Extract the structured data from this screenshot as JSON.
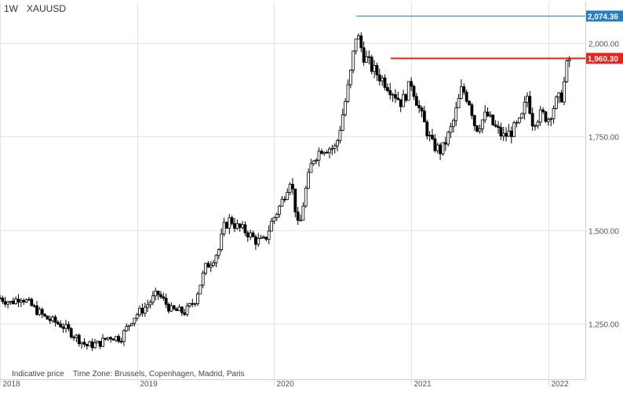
{
  "header": {
    "interval": "1W",
    "symbol": "XAUUSD"
  },
  "footer": {
    "note": "Indicative price",
    "timezone": "Time Zone: Brussels, Copenhagen, Madrid, Paris"
  },
  "colors": {
    "up": "#ffffff",
    "down": "#000000",
    "wick": "#000000",
    "grid": "#e3e3e3",
    "high_line": "#2b7bbf",
    "current_line": "#e8231b"
  },
  "chart_data": {
    "type": "candlestick",
    "title": "",
    "xlabel": "",
    "ylabel": "",
    "ylim": [
      1100,
      2110
    ],
    "y_ticks": [
      1250,
      1500,
      1750,
      2000
    ],
    "y_tick_labels": [
      "1,250.00",
      "1,500.00",
      "1,750.00",
      "2,000.00"
    ],
    "x_ticks": [
      2018,
      2019,
      2020,
      2021,
      2022
    ],
    "x_tick_labels": [
      "2018",
      "2019",
      "2020",
      "2021",
      "2022"
    ],
    "xlim": [
      2018.0,
      2022.27
    ],
    "grid": true,
    "anchors": [
      [
        2018.0,
        1318
      ],
      [
        2018.08,
        1305
      ],
      [
        2018.15,
        1322
      ],
      [
        2018.25,
        1290
      ],
      [
        2018.33,
        1265
      ],
      [
        2018.45,
        1245
      ],
      [
        2018.55,
        1215
      ],
      [
        2018.63,
        1190
      ],
      [
        2018.72,
        1195
      ],
      [
        2018.8,
        1215
      ],
      [
        2018.88,
        1210
      ],
      [
        2018.97,
        1265
      ],
      [
        2019.05,
        1290
      ],
      [
        2019.15,
        1330
      ],
      [
        2019.25,
        1285
      ],
      [
        2019.35,
        1280
      ],
      [
        2019.42,
        1310
      ],
      [
        2019.5,
        1400
      ],
      [
        2019.55,
        1420
      ],
      [
        2019.6,
        1450
      ],
      [
        2019.63,
        1505
      ],
      [
        2019.68,
        1530
      ],
      [
        2019.72,
        1510
      ],
      [
        2019.8,
        1495
      ],
      [
        2019.87,
        1470
      ],
      [
        2019.93,
        1470
      ],
      [
        2019.98,
        1520
      ],
      [
        2020.05,
        1570
      ],
      [
        2020.12,
        1640
      ],
      [
        2020.18,
        1495
      ],
      [
        2020.22,
        1590
      ],
      [
        2020.28,
        1690
      ],
      [
        2020.35,
        1720
      ],
      [
        2020.45,
        1720
      ],
      [
        2020.5,
        1810
      ],
      [
        2020.55,
        1900
      ],
      [
        2020.6,
        2030
      ],
      [
        2020.65,
        1970
      ],
      [
        2020.72,
        1930
      ],
      [
        2020.8,
        1900
      ],
      [
        2020.87,
        1870
      ],
      [
        2020.93,
        1840
      ],
      [
        2021.0,
        1895
      ],
      [
        2021.07,
        1810
      ],
      [
        2021.15,
        1730
      ],
      [
        2021.22,
        1710
      ],
      [
        2021.3,
        1780
      ],
      [
        2021.37,
        1880
      ],
      [
        2021.43,
        1840
      ],
      [
        2021.47,
        1770
      ],
      [
        2021.55,
        1810
      ],
      [
        2021.6,
        1780
      ],
      [
        2021.67,
        1750
      ],
      [
        2021.72,
        1760
      ],
      [
        2021.8,
        1790
      ],
      [
        2021.85,
        1865
      ],
      [
        2021.88,
        1790
      ],
      [
        2021.95,
        1810
      ],
      [
        2022.0,
        1800
      ],
      [
        2022.05,
        1840
      ],
      [
        2022.1,
        1860
      ],
      [
        2022.14,
        1950
      ],
      [
        2022.16,
        1960
      ]
    ],
    "overlays": [
      {
        "name": "high",
        "value": 2074.36,
        "label": "2,074.36",
        "x_start": 2020.6
      },
      {
        "name": "current",
        "value": 1960.3,
        "label": "1,960.30",
        "x_start": 2020.85
      }
    ]
  }
}
